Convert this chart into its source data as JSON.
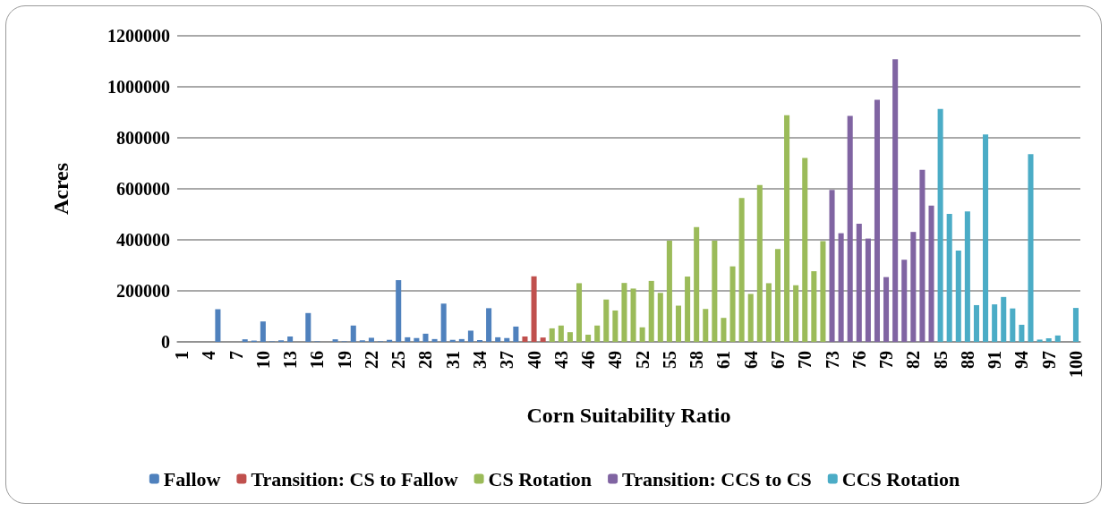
{
  "chart_data": {
    "type": "bar",
    "xlabel": "Corn Suitability Ratio",
    "ylabel": "Acres",
    "categories": [
      "1",
      null,
      null,
      "4",
      null,
      null,
      "7",
      null,
      null,
      "10",
      null,
      null,
      "13",
      null,
      null,
      "16",
      null,
      null,
      "19",
      null,
      null,
      "22",
      null,
      null,
      "25",
      null,
      null,
      "28",
      null,
      null,
      "31",
      null,
      null,
      "34",
      null,
      null,
      "37",
      null,
      null,
      "40",
      null,
      null,
      "43",
      null,
      null,
      "46",
      null,
      null,
      "49",
      null,
      null,
      "52",
      null,
      null,
      "55",
      null,
      null,
      "58",
      null,
      null,
      "61",
      null,
      null,
      "64",
      null,
      null,
      "67",
      null,
      null,
      "70",
      null,
      null,
      "73",
      null,
      null,
      "76",
      null,
      null,
      "79",
      null,
      null,
      "82",
      null,
      null,
      "85",
      null,
      null,
      "88",
      null,
      null,
      "91",
      null,
      null,
      "94",
      null,
      null,
      "97",
      null,
      null,
      "100"
    ],
    "series": [
      {
        "name": "Fallow",
        "color": "#4f81bd",
        "values": [
          null,
          null,
          null,
          null,
          128000,
          null,
          null,
          10000,
          5000,
          80000,
          2000,
          6000,
          21000,
          null,
          113000,
          2000,
          null,
          10000,
          2000,
          64000,
          6000,
          16000,
          2000,
          8000,
          242000,
          18000,
          15000,
          32000,
          11000,
          150000,
          8000,
          11000,
          44000,
          7000,
          132000,
          18000,
          15000,
          60000,
          null,
          null,
          null,
          null,
          null,
          null,
          null,
          null,
          null,
          null,
          null,
          null,
          null,
          null,
          null,
          null,
          null,
          null,
          null,
          null,
          null,
          null,
          null,
          null,
          null,
          null,
          null,
          null,
          null,
          null,
          null,
          null,
          null,
          null,
          null,
          null,
          null,
          null,
          null,
          null,
          null,
          null,
          null,
          null,
          null,
          null,
          null,
          null,
          null,
          null,
          null,
          null,
          null,
          null,
          null,
          null,
          null,
          null,
          null,
          null,
          null,
          null
        ]
      },
      {
        "name": "Transition: CS to Fallow",
        "color": "#c0504d",
        "values": [
          null,
          null,
          null,
          null,
          null,
          null,
          null,
          null,
          null,
          null,
          null,
          null,
          null,
          null,
          null,
          null,
          null,
          null,
          null,
          null,
          null,
          null,
          null,
          null,
          null,
          null,
          null,
          null,
          null,
          null,
          null,
          null,
          null,
          null,
          null,
          null,
          null,
          null,
          21000,
          257000,
          17000,
          null,
          null,
          null,
          null,
          null,
          null,
          null,
          null,
          null,
          null,
          null,
          null,
          null,
          null,
          null,
          null,
          null,
          null,
          null,
          null,
          null,
          null,
          null,
          null,
          null,
          null,
          null,
          null,
          null,
          null,
          null,
          null,
          null,
          null,
          null,
          null,
          null,
          null,
          null,
          null,
          null,
          null,
          null,
          null,
          null,
          null,
          null,
          null,
          null,
          null,
          null,
          null,
          null,
          null,
          null,
          null,
          null,
          null,
          null
        ]
      },
      {
        "name": "CS Rotation",
        "color": "#9bbb59",
        "values": [
          null,
          null,
          null,
          null,
          null,
          null,
          null,
          null,
          null,
          null,
          null,
          null,
          null,
          null,
          null,
          null,
          null,
          null,
          null,
          null,
          null,
          null,
          null,
          null,
          null,
          null,
          null,
          null,
          null,
          null,
          null,
          null,
          null,
          null,
          null,
          null,
          null,
          null,
          null,
          null,
          null,
          53000,
          64000,
          38000,
          230000,
          28000,
          64000,
          166000,
          123000,
          231000,
          209000,
          57000,
          239000,
          192000,
          397000,
          142000,
          256000,
          450000,
          129000,
          397000,
          94000,
          296000,
          564000,
          188000,
          615000,
          230000,
          364000,
          889000,
          222000,
          721000,
          277000,
          395000,
          null,
          null,
          null,
          null,
          null,
          null,
          null,
          null,
          null,
          null,
          null,
          null,
          null,
          null,
          null,
          null,
          null,
          null,
          null,
          null,
          null,
          null,
          null,
          null,
          null,
          null,
          null,
          null
        ]
      },
      {
        "name": "Transition: CCS to CS",
        "color": "#8064a2",
        "values": [
          null,
          null,
          null,
          null,
          null,
          null,
          null,
          null,
          null,
          null,
          null,
          null,
          null,
          null,
          null,
          null,
          null,
          null,
          null,
          null,
          null,
          null,
          null,
          null,
          null,
          null,
          null,
          null,
          null,
          null,
          null,
          null,
          null,
          null,
          null,
          null,
          null,
          null,
          null,
          null,
          null,
          null,
          null,
          null,
          null,
          null,
          null,
          null,
          null,
          null,
          null,
          null,
          null,
          null,
          null,
          null,
          null,
          null,
          null,
          null,
          null,
          null,
          null,
          null,
          null,
          null,
          null,
          null,
          null,
          null,
          null,
          null,
          596000,
          426000,
          886000,
          463000,
          405000,
          949000,
          254000,
          1108000,
          322000,
          431000,
          675000,
          534000,
          null,
          null,
          null,
          null,
          null,
          null,
          null,
          null,
          null,
          null,
          null,
          null,
          null,
          null,
          null,
          null
        ]
      },
      {
        "name": "CCS Rotation",
        "color": "#4bacc6",
        "values": [
          null,
          null,
          null,
          null,
          null,
          null,
          null,
          null,
          null,
          null,
          null,
          null,
          null,
          null,
          null,
          null,
          null,
          null,
          null,
          null,
          null,
          null,
          null,
          null,
          null,
          null,
          null,
          null,
          null,
          null,
          null,
          null,
          null,
          null,
          null,
          null,
          null,
          null,
          null,
          null,
          null,
          null,
          null,
          null,
          null,
          null,
          null,
          null,
          null,
          null,
          null,
          null,
          null,
          null,
          null,
          null,
          null,
          null,
          null,
          null,
          null,
          null,
          null,
          null,
          null,
          null,
          null,
          null,
          null,
          null,
          null,
          null,
          null,
          null,
          null,
          null,
          null,
          null,
          null,
          null,
          null,
          null,
          null,
          null,
          913000,
          502000,
          358000,
          511000,
          144000,
          813000,
          147000,
          176000,
          131000,
          67000,
          736000,
          9000,
          14000,
          25000,
          null,
          133000
        ]
      }
    ],
    "stacked": true,
    "ylim": [
      0,
      1200000
    ],
    "yticks": [
      0,
      200000,
      400000,
      600000,
      800000,
      1000000,
      1200000
    ],
    "grid": "y",
    "legend": "bottom"
  }
}
